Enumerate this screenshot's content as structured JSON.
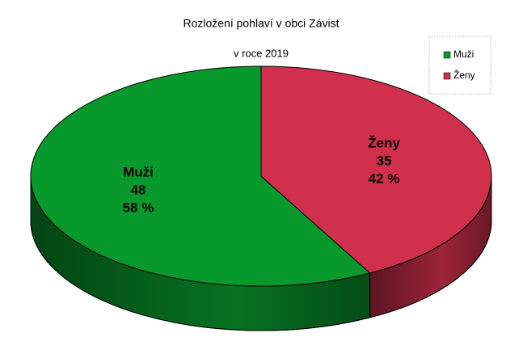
{
  "chart_data": {
    "type": "pie3d",
    "title": "Rozložení pohlaví v obci Závist",
    "subtitle": "v roce 2019",
    "categories": [
      "Muži",
      "Ženy"
    ],
    "values": [
      48,
      35
    ],
    "percentages": [
      58,
      42
    ],
    "percentage_labels": [
      "58 %",
      "42 %"
    ],
    "colors": [
      "#08992c",
      "#d0304c"
    ],
    "legend": "top-right"
  }
}
